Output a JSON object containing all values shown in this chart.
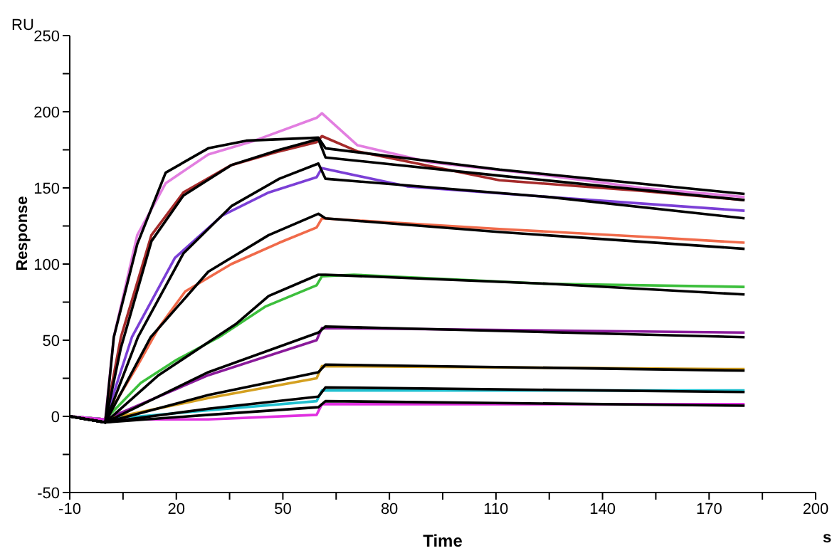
{
  "chart_data": {
    "type": "line",
    "xlabel": "Time",
    "ylabel": "Response",
    "annotations": [
      "RU",
      "s"
    ],
    "xlim": [
      -10,
      200
    ],
    "xticks": [
      -10,
      {
        "value": 5,
        "label": null
      },
      20,
      {
        "value": 35,
        "label": null
      },
      50,
      {
        "value": 65,
        "label": null
      },
      80,
      {
        "value": 95,
        "label": null
      },
      110,
      {
        "value": 125,
        "label": null
      },
      140,
      {
        "value": 155,
        "label": null
      },
      170,
      {
        "value": 185,
        "label": null
      },
      200
    ],
    "ylim": [
      -50,
      250
    ],
    "yticks": [
      -50,
      {
        "value": -25,
        "label": null
      },
      0,
      {
        "value": 25,
        "label": null
      },
      50,
      {
        "value": 75,
        "label": null
      },
      100,
      {
        "value": 125,
        "label": null
      },
      150,
      {
        "value": 175,
        "label": null
      },
      200,
      {
        "value": 225,
        "label": null
      },
      250
    ],
    "grid": false,
    "legend": false,
    "marker": "none",
    "line_style": "solid",
    "series": [
      {
        "color": "#e27ee0",
        "x": [
          -10,
          0,
          2.4,
          9,
          17,
          29,
          42,
          59.5,
          61,
          71,
          91,
          125,
          151,
          180
        ],
        "values": [
          0,
          -2,
          52,
          119,
          153,
          172,
          181,
          196,
          199,
          178,
          167,
          158,
          150,
          144
        ]
      },
      {
        "color": "#a52a2a",
        "x": [
          -10,
          0,
          4.4,
          13,
          22,
          35.5,
          49,
          59.5,
          61,
          71,
          111,
          151,
          180
        ],
        "values": [
          0,
          -2,
          52,
          119,
          147,
          165,
          174,
          180,
          184,
          174,
          155,
          148,
          142
        ]
      },
      {
        "color": "#7b3fd6",
        "x": [
          -10,
          0,
          7.5,
          19.6,
          33,
          46,
          59.5,
          61,
          85,
          125,
          180
        ],
        "values": [
          0,
          -2,
          52,
          104,
          132,
          147,
          157,
          163,
          151,
          144,
          135
        ]
      },
      {
        "color": "#f06a4a",
        "x": [
          -10,
          0,
          9,
          15,
          22.5,
          35.5,
          49,
          59.5,
          61,
          111,
          151,
          180
        ],
        "values": [
          0,
          -2,
          33,
          58,
          82,
          100,
          114,
          124,
          130,
          123,
          118,
          114
        ]
      },
      {
        "color": "#3cbf3c",
        "x": [
          -10,
          0,
          10,
          20,
          32,
          45,
          59.5,
          61,
          70,
          125,
          180
        ],
        "values": [
          0,
          -2,
          22,
          37,
          52,
          72,
          86,
          92,
          93,
          87,
          85
        ]
      },
      {
        "color": "#8a1a9a",
        "x": [
          -10,
          0,
          29,
          59.5,
          61,
          180
        ],
        "values": [
          0,
          -2,
          27,
          50,
          58,
          55
        ]
      },
      {
        "color": "#d4a020",
        "x": [
          -10,
          0,
          29,
          59.5,
          61,
          180
        ],
        "values": [
          0,
          -2,
          12,
          25,
          33,
          31
        ]
      },
      {
        "color": "#20c0d0",
        "x": [
          -10,
          0,
          29,
          59.5,
          61,
          180
        ],
        "values": [
          0,
          -2,
          4,
          10,
          17,
          17
        ]
      },
      {
        "color": "#e030e0",
        "x": [
          -10,
          0,
          29,
          59.5,
          61,
          180
        ],
        "values": [
          0,
          -2,
          -2,
          1,
          8,
          8
        ]
      },
      {
        "color": "#000000",
        "x": [
          -10,
          0,
          2.4,
          9,
          17,
          29,
          39.7,
          60,
          62,
          111,
          180
        ],
        "values": [
          0,
          -4,
          52,
          113,
          160,
          176,
          181,
          183,
          176,
          162,
          146
        ]
      },
      {
        "color": "#000000",
        "x": [
          -10,
          0,
          4.4,
          13,
          22,
          35.5,
          49,
          60,
          62,
          111,
          180
        ],
        "values": [
          0,
          -4,
          45,
          115,
          145,
          165,
          175,
          182,
          170,
          158,
          142
        ]
      },
      {
        "color": "#000000",
        "x": [
          -10,
          0,
          9.2,
          22,
          35.5,
          49,
          60,
          62,
          125,
          180
        ],
        "values": [
          0,
          -4,
          52,
          107,
          138,
          156,
          166,
          156,
          144,
          130
        ]
      },
      {
        "color": "#000000",
        "x": [
          -10,
          0,
          12.8,
          29,
          46,
          60,
          62,
          111,
          180
        ],
        "values": [
          0,
          -4,
          52,
          95,
          119,
          133,
          130,
          121,
          110
        ]
      },
      {
        "color": "#000000",
        "x": [
          -10,
          0,
          15,
          37,
          46,
          60,
          62,
          125,
          180
        ],
        "values": [
          0,
          -4,
          27,
          61,
          79,
          93,
          93,
          87,
          80
        ]
      },
      {
        "color": "#000000",
        "x": [
          -10,
          0,
          29,
          60,
          62,
          180
        ],
        "values": [
          0,
          -4,
          29,
          55,
          59,
          52
        ]
      },
      {
        "color": "#000000",
        "x": [
          -10,
          0,
          29,
          60,
          62,
          180
        ],
        "values": [
          0,
          -4,
          14,
          29,
          34,
          30
        ]
      },
      {
        "color": "#000000",
        "x": [
          -10,
          0,
          29,
          60,
          62,
          180
        ],
        "values": [
          0,
          -4,
          5,
          13,
          19,
          16
        ]
      },
      {
        "color": "#000000",
        "x": [
          -10,
          0,
          29,
          60,
          62,
          180
        ],
        "values": [
          0,
          -4,
          1,
          6,
          10,
          7
        ]
      }
    ]
  }
}
